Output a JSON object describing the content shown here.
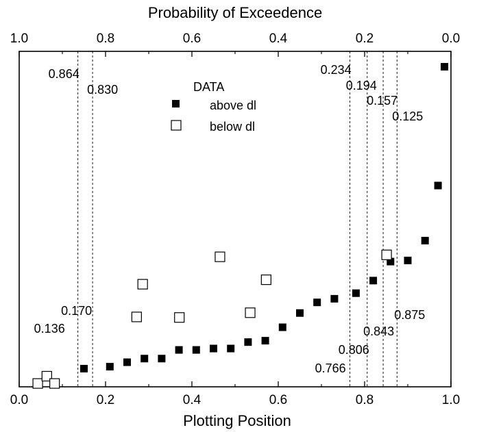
{
  "chart_data": {
    "type": "scatter",
    "xlabel": "Plotting Position",
    "x2label": "Probability of Exceedence",
    "xlim": [
      0.0,
      1.0
    ],
    "x_ticks": [
      "0.0",
      "0.2",
      "0.4",
      "0.6",
      "0.8",
      "1.0"
    ],
    "x2lim": [
      1.0,
      0.0
    ],
    "x2_ticks": [
      "1.0",
      "0.8",
      "0.6",
      "0.4",
      "0.2",
      "0.0"
    ],
    "ylabel": "",
    "y_ticks_labeled": false,
    "grid": false,
    "legend": {
      "title": "DATA",
      "position": "top-center",
      "entries": [
        {
          "label": "above dl",
          "marker": "filled-square"
        },
        {
          "label": "below dl",
          "marker": "open-square"
        }
      ]
    },
    "series": [
      {
        "name": "above dl",
        "marker": "filled-square",
        "color": "#000000",
        "points": [
          {
            "x": 0.15,
            "y": 0.065
          },
          {
            "x": 0.21,
            "y": 0.072
          },
          {
            "x": 0.25,
            "y": 0.088
          },
          {
            "x": 0.29,
            "y": 0.101
          },
          {
            "x": 0.33,
            "y": 0.101
          },
          {
            "x": 0.37,
            "y": 0.132
          },
          {
            "x": 0.41,
            "y": 0.132
          },
          {
            "x": 0.45,
            "y": 0.137
          },
          {
            "x": 0.49,
            "y": 0.137
          },
          {
            "x": 0.53,
            "y": 0.16
          },
          {
            "x": 0.57,
            "y": 0.165
          },
          {
            "x": 0.61,
            "y": 0.213
          },
          {
            "x": 0.65,
            "y": 0.264
          },
          {
            "x": 0.69,
            "y": 0.302
          },
          {
            "x": 0.73,
            "y": 0.315
          },
          {
            "x": 0.78,
            "y": 0.335
          },
          {
            "x": 0.82,
            "y": 0.38
          },
          {
            "x": 0.86,
            "y": 0.448
          },
          {
            "x": 0.9,
            "y": 0.452
          },
          {
            "x": 0.94,
            "y": 0.523
          },
          {
            "x": 0.97,
            "y": 0.72
          },
          {
            "x": 0.985,
            "y": 1.145
          }
        ]
      },
      {
        "name": "below dl",
        "marker": "open-square",
        "color": "#000000",
        "points": [
          {
            "x": 0.043,
            "y": 0.012
          },
          {
            "x": 0.064,
            "y": 0.038
          },
          {
            "x": 0.082,
            "y": 0.012
          },
          {
            "x": 0.272,
            "y": 0.25
          },
          {
            "x": 0.286,
            "y": 0.367
          },
          {
            "x": 0.371,
            "y": 0.248
          },
          {
            "x": 0.465,
            "y": 0.465
          },
          {
            "x": 0.535,
            "y": 0.265
          },
          {
            "x": 0.572,
            "y": 0.383
          },
          {
            "x": 0.851,
            "y": 0.472
          }
        ]
      }
    ],
    "reference_lines": [
      {
        "x": 0.136,
        "top_label": "0.864",
        "bottom_label": "0.136"
      },
      {
        "x": 0.17,
        "top_label": "0.830",
        "bottom_label": "0.170"
      },
      {
        "x": 0.766,
        "top_label": "0.234",
        "bottom_label": "0.766"
      },
      {
        "x": 0.806,
        "top_label": "0.194",
        "bottom_label": "0.806"
      },
      {
        "x": 0.843,
        "top_label": "0.157",
        "bottom_label": "0.843"
      },
      {
        "x": 0.875,
        "top_label": "0.125",
        "bottom_label": "0.875"
      }
    ],
    "ylim": [
      0.0,
      1.2
    ]
  }
}
